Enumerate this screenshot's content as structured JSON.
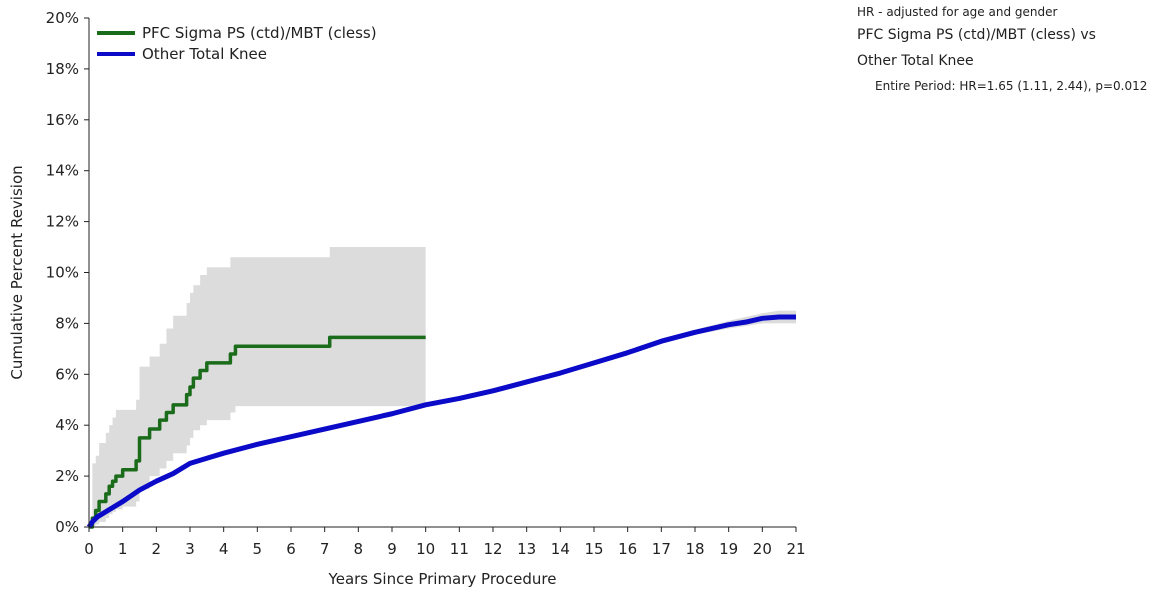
{
  "chart_data": {
    "type": "line",
    "title": "",
    "xlabel": "Years Since Primary Procedure",
    "ylabel": "Cumulative Percent Revision",
    "xlim": [
      0,
      21
    ],
    "ylim": [
      0,
      20
    ],
    "x_ticks": [
      "0",
      "1",
      "2",
      "3",
      "4",
      "5",
      "6",
      "7",
      "8",
      "9",
      "10",
      "11",
      "12",
      "13",
      "14",
      "15",
      "16",
      "17",
      "18",
      "19",
      "20",
      "21"
    ],
    "y_ticks": [
      "0%",
      "2%",
      "4%",
      "6%",
      "8%",
      "10%",
      "12%",
      "14%",
      "16%",
      "18%",
      "20%"
    ],
    "grid": false,
    "legend_position": "top-left",
    "series": [
      {
        "name": "PFC Sigma PS (ctd)/MBT (cless)",
        "color": "#1a6b1a",
        "step": true,
        "x": [
          0,
          0.1,
          0.2,
          0.3,
          0.5,
          0.6,
          0.7,
          0.8,
          1.0,
          1.4,
          1.5,
          1.8,
          2.1,
          2.3,
          2.5,
          2.9,
          3.0,
          3.1,
          3.3,
          3.5,
          4.2,
          4.35,
          7.15,
          10.0
        ],
        "y": [
          0,
          0.35,
          0.65,
          1.0,
          1.3,
          1.6,
          1.8,
          2.0,
          2.25,
          2.6,
          3.5,
          3.85,
          4.2,
          4.5,
          4.8,
          5.2,
          5.5,
          5.85,
          6.15,
          6.45,
          6.8,
          7.1,
          7.45,
          7.45
        ],
        "ci_lower": [
          0,
          0.05,
          0.1,
          0.2,
          0.35,
          0.5,
          0.6,
          0.7,
          0.8,
          1.0,
          1.5,
          2.0,
          2.3,
          2.6,
          2.9,
          3.2,
          3.5,
          3.8,
          4.0,
          4.2,
          4.5,
          4.75,
          4.75,
          5.0
        ],
        "ci_upper": [
          0,
          2.5,
          2.8,
          3.3,
          3.7,
          4.0,
          4.3,
          4.6,
          4.6,
          5.0,
          6.3,
          6.7,
          7.2,
          7.8,
          8.3,
          8.8,
          9.2,
          9.5,
          9.9,
          10.2,
          10.6,
          10.6,
          11.0,
          11.0
        ]
      },
      {
        "name": "Other Total Knee",
        "color": "#0a0ac8",
        "step": false,
        "x": [
          0,
          0.1,
          0.25,
          0.5,
          0.75,
          1,
          1.5,
          2,
          2.5,
          3,
          3.5,
          4,
          5,
          6,
          7,
          8,
          9,
          10,
          11,
          12,
          13,
          14,
          15,
          16,
          17,
          18,
          19,
          19.5,
          20,
          20.5,
          21
        ],
        "y": [
          0,
          0.2,
          0.4,
          0.6,
          0.8,
          1.0,
          1.45,
          1.8,
          2.1,
          2.5,
          2.7,
          2.9,
          3.25,
          3.55,
          3.85,
          4.15,
          4.45,
          4.8,
          5.05,
          5.35,
          5.7,
          6.05,
          6.45,
          6.85,
          7.3,
          7.65,
          7.95,
          8.05,
          8.2,
          8.25,
          8.25
        ],
        "ci_lower": [
          0,
          0.15,
          0.35,
          0.55,
          0.75,
          0.95,
          1.4,
          1.75,
          2.05,
          2.45,
          2.65,
          2.85,
          3.2,
          3.5,
          3.8,
          4.1,
          4.4,
          4.75,
          5.0,
          5.3,
          5.65,
          6.0,
          6.4,
          6.8,
          7.2,
          7.55,
          7.8,
          7.9,
          8.0,
          8.0,
          8.0
        ],
        "ci_upper": [
          0,
          0.25,
          0.45,
          0.65,
          0.85,
          1.05,
          1.5,
          1.85,
          2.15,
          2.55,
          2.75,
          2.95,
          3.3,
          3.6,
          3.9,
          4.2,
          4.5,
          4.85,
          5.1,
          5.4,
          5.75,
          6.1,
          6.5,
          6.9,
          7.4,
          7.75,
          8.1,
          8.25,
          8.4,
          8.5,
          8.5
        ]
      }
    ],
    "ci_color": "#dcdcdc"
  },
  "hr_panel": {
    "title": "HR - adjusted for age and gender",
    "comparison_line1": "PFC Sigma PS (ctd)/MBT (cless) vs",
    "comparison_line2": "Other Total Knee",
    "entire_period": "Entire Period: HR=1.65 (1.11, 2.44), p=0.012"
  }
}
